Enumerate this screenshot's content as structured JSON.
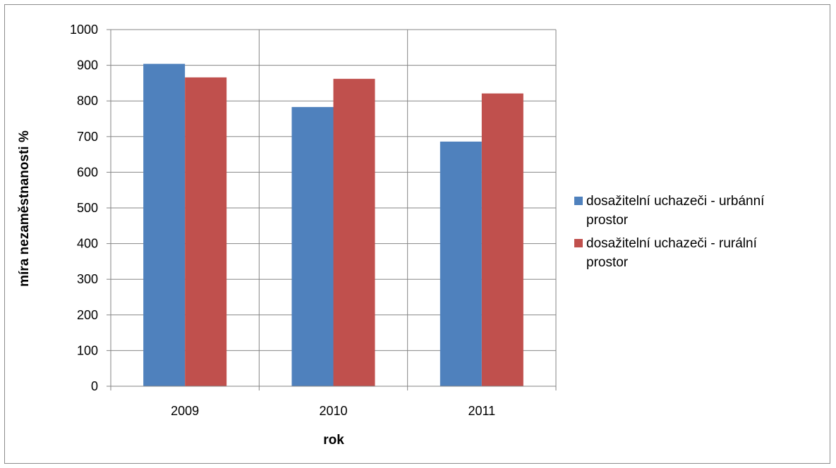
{
  "chart_data": {
    "type": "bar",
    "categories": [
      "2009",
      "2010",
      "2011"
    ],
    "series": [
      {
        "name": "dosažitelní uchazeči - urbánní prostor",
        "values": [
          904,
          783,
          686
        ],
        "color": "#4f81bd"
      },
      {
        "name": "dosažitelní uchazeči - rurální prostor",
        "values": [
          866,
          862,
          821
        ],
        "color": "#c0504d"
      }
    ],
    "xlabel": "rok",
    "ylabel": "míra nezaměstnanosti %",
    "ylim": [
      0,
      1000
    ],
    "yticks": [
      "0",
      "100",
      "200",
      "300",
      "400",
      "500",
      "600",
      "700",
      "800",
      "900",
      "1000"
    ],
    "grid": true,
    "legend_position": "right",
    "legend_lines": [
      [
        "dosažitelní uchazeči - urbánní",
        "prostor"
      ],
      [
        "dosažitelní uchazeči - rurální",
        "prostor"
      ]
    ]
  }
}
